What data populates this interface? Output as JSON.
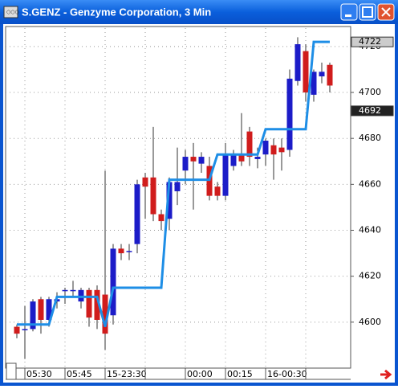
{
  "chart_data": {
    "type": "candlestick",
    "title": "S.GENZ - Genzyme Corporation, 3 Min",
    "categories": [
      null,
      "05:30",
      null,
      null,
      null,
      null,
      "05:45",
      null,
      null,
      null,
      null,
      "15-23:30",
      null,
      null,
      null,
      null,
      null,
      null,
      null,
      null,
      null,
      "00:00",
      null,
      null,
      null,
      null,
      "00:15",
      null,
      null,
      null,
      null,
      "16-00:30",
      null,
      null,
      null,
      null,
      null,
      null,
      null,
      null
    ],
    "open": [
      4598,
      4597,
      4597,
      4610,
      4601,
      4609,
      4614,
      4614,
      4609,
      4614,
      4614,
      4612,
      4603,
      4632,
      4631,
      4634,
      4663,
      4663,
      4647,
      4645,
      4657,
      4666,
      4672,
      4669,
      4668,
      4659,
      4655,
      4668,
      4673,
      4683,
      4671,
      4673,
      4677,
      4676,
      4675,
      4705,
      4718,
      4699,
      4707,
      4712
    ],
    "high": [
      4599,
      4607,
      4610,
      4611,
      4611,
      4613,
      4615,
      4618,
      4615,
      4615,
      4616,
      4666,
      4634,
      4634,
      4634,
      4662,
      4665,
      4685,
      4649,
      4663,
      4676,
      4675,
      4678,
      4674,
      4672,
      4661,
      4678,
      4675,
      4691,
      4685,
      4676,
      4680,
      4680,
      4680,
      4710,
      4724,
      4721,
      4710,
      4713,
      4713
    ],
    "low": [
      4593,
      4584,
      4596,
      4595,
      4598,
      4606,
      4608,
      4611,
      4606,
      4598,
      4597,
      4588,
      4599,
      4627,
      4627,
      4630,
      4645,
      4644,
      4640,
      4640,
      4651,
      4660,
      4649,
      4665,
      4653,
      4653,
      4653,
      4666,
      4668,
      4668,
      4667,
      4668,
      4662,
      4666,
      4672,
      4703,
      4696,
      4696,
      4704,
      4700
    ],
    "close": [
      4595,
      4597,
      4609,
      4601,
      4610,
      4610,
      4614,
      4614,
      4614,
      4602,
      4601,
      4595,
      4632,
      4630,
      4631,
      4660,
      4659,
      4647,
      4644,
      4661,
      4661,
      4672,
      4670,
      4672,
      4655,
      4655,
      4673,
      4673,
      4670,
      4672,
      4672,
      4679,
      4673,
      4674,
      4706,
      4721,
      4700,
      4709,
      4709,
      4703
    ],
    "up_color": "#1c1cc8",
    "down_color": "#d01c1c",
    "line": {
      "color": "#1e8ee6",
      "values": [
        4599,
        4599,
        4599,
        4599,
        4599,
        4611,
        4611,
        4611,
        4611,
        4611,
        4611,
        4598,
        4615,
        4615,
        4615,
        4615,
        4615,
        4615,
        4615,
        4662,
        4662,
        4662,
        4662,
        4662,
        4662,
        4673,
        4673,
        4673,
        4673,
        4673,
        4673,
        4684,
        4684,
        4684,
        4684,
        4684,
        4684,
        4722,
        4722,
        4722
      ]
    },
    "ylim": [
      4580,
      4728
    ],
    "yticks": [
      4600,
      4620,
      4640,
      4660,
      4680,
      4700,
      4720
    ],
    "price_markers": [
      4722,
      4692
    ],
    "grid": true
  }
}
